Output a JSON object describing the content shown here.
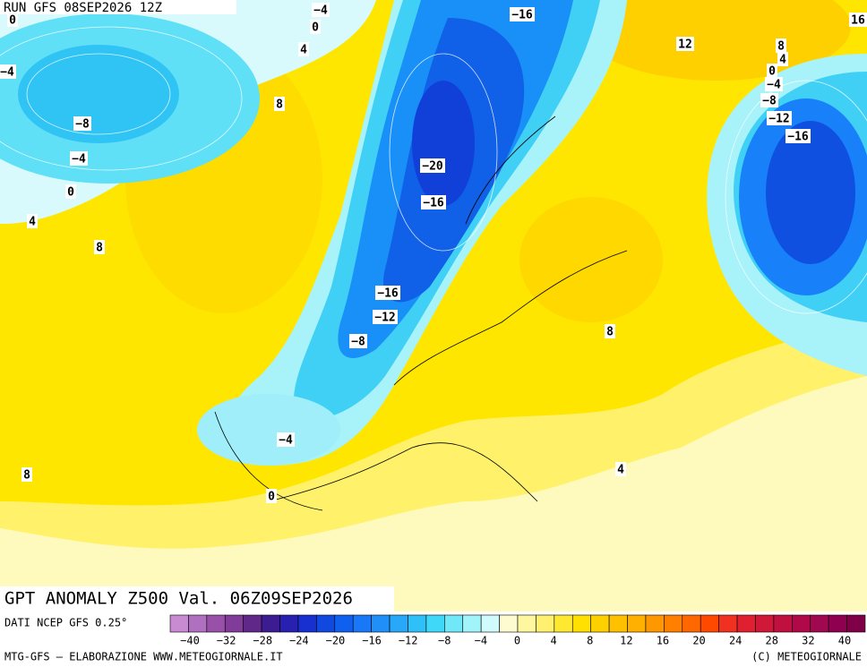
{
  "header": {
    "run": "RUN GFS 08SEP2026 12Z"
  },
  "title": "GPT ANOMALY Z500 Val. 06Z09SEP2026",
  "source": "DATI NCEP GFS 0.25°",
  "footer": {
    "left": "MTG-GFS — ELABORAZIONE WWW.METEOGIORNALE.IT",
    "right": "(C) METEOGIORNALE"
  },
  "map": {
    "contour_labels": [
      "0",
      "−4",
      "0",
      "4",
      "−16",
      "12",
      "8",
      "4",
      "0",
      "−4",
      "−8",
      "−12",
      "−16",
      "16",
      "−4",
      "−8",
      "8",
      "−4",
      "0",
      "−20",
      "4",
      "−16",
      "8",
      "−16",
      "−12",
      "−8",
      "8",
      "−4",
      "8",
      "4",
      "0"
    ]
  },
  "colorbar": {
    "colors": [
      "#c88ad0",
      "#b070c0",
      "#9850a8",
      "#803c98",
      "#602888",
      "#3c1c90",
      "#2820b0",
      "#1830d0",
      "#1048e0",
      "#1060f0",
      "#1878f8",
      "#2090f8",
      "#28a8f8",
      "#30c0f8",
      "#40d8f8",
      "#70e8f8",
      "#a0f4fa",
      "#d0fafc",
      "#fffbd0",
      "#fff6a0",
      "#fff070",
      "#ffe830",
      "#ffe000",
      "#ffd000",
      "#ffc000",
      "#ffb000",
      "#ff9800",
      "#ff8000",
      "#ff6800",
      "#ff4800",
      "#f03020",
      "#e02030",
      "#d01838",
      "#c01040",
      "#b00848",
      "#a00850",
      "#900050",
      "#800048"
    ],
    "labels": [
      "−40",
      "−32",
      "−28",
      "−24",
      "−20",
      "−16",
      "−12",
      "−8",
      "−4",
      "0",
      "4",
      "8",
      "12",
      "16",
      "20",
      "24",
      "28",
      "32",
      "40"
    ]
  }
}
